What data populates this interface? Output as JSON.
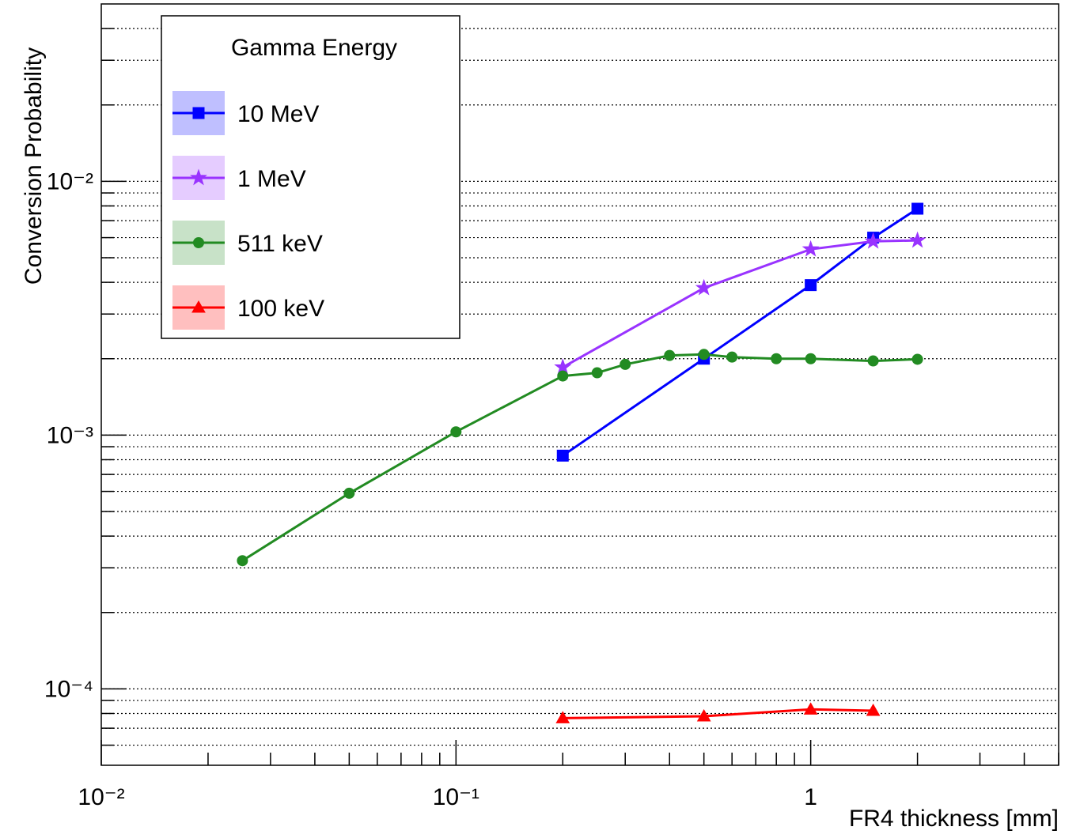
{
  "chart_data": {
    "type": "line",
    "x_label": "FR4 thickness [mm]",
    "y_label": "Conversion Probability",
    "legend_title": "Gamma Energy",
    "legend_position": "upper-left",
    "xscale": "log",
    "yscale": "log",
    "grid": "y",
    "xlim": [
      0.01,
      5
    ],
    "ylim": [
      5e-05,
      0.05
    ],
    "xticks": [
      {
        "value": 0.01,
        "label": "10⁻²"
      },
      {
        "value": 0.1,
        "label": "10⁻¹"
      },
      {
        "value": 1,
        "label": "1"
      }
    ],
    "xminorticks": [
      0.02,
      0.03,
      0.04,
      0.05,
      0.06,
      0.07,
      0.08,
      0.09,
      0.2,
      0.3,
      0.4,
      0.5,
      0.6,
      0.7,
      0.8,
      0.9,
      2,
      3,
      4,
      5
    ],
    "yticks": [
      {
        "value": 0.0001,
        "label": "10⁻⁴"
      },
      {
        "value": 0.001,
        "label": "10⁻³"
      },
      {
        "value": 0.01,
        "label": "10⁻²"
      }
    ],
    "yminorticks": [
      6e-05,
      7e-05,
      8e-05,
      9e-05,
      0.0002,
      0.0003,
      0.0004,
      0.0005,
      0.0006,
      0.0007,
      0.0008,
      0.0009,
      0.002,
      0.003,
      0.004,
      0.005,
      0.006,
      0.007,
      0.008,
      0.009,
      0.02,
      0.03,
      0.04
    ],
    "series": [
      {
        "name": "10 MeV",
        "color": "#0000ff",
        "marker": "square",
        "x": [
          0.2,
          0.5,
          1,
          1.5,
          2
        ],
        "values": [
          0.00083,
          0.002,
          0.0039,
          0.006,
          0.0078
        ]
      },
      {
        "name": "1 MeV",
        "color": "#9933ff",
        "marker": "star",
        "x": [
          0.2,
          0.5,
          1,
          1.5,
          2
        ],
        "values": [
          0.00185,
          0.0038,
          0.0054,
          0.0058,
          0.00585
        ]
      },
      {
        "name": "511 keV",
        "color": "#228b22",
        "marker": "circle",
        "x": [
          0.025,
          0.05,
          0.1,
          0.2,
          0.25,
          0.3,
          0.4,
          0.5,
          0.6,
          0.8,
          1,
          1.5,
          2
        ],
        "values": [
          0.00032,
          0.00059,
          0.00103,
          0.00171,
          0.00176,
          0.0019,
          0.00206,
          0.00208,
          0.00203,
          0.002,
          0.002,
          0.00196,
          0.00199
        ]
      },
      {
        "name": "100 keV",
        "color": "#ff0000",
        "marker": "triangle",
        "x": [
          0.2,
          0.5,
          1,
          1.5
        ],
        "values": [
          7.67e-05,
          7.8e-05,
          8.3e-05,
          8.2e-05
        ]
      }
    ]
  }
}
